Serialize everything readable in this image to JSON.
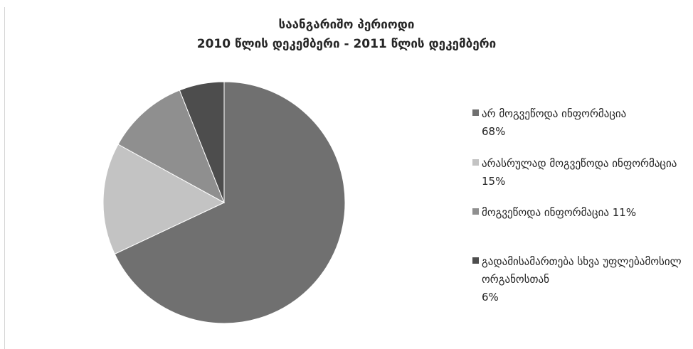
{
  "chart_data": {
    "type": "pie",
    "title": [
      "საანგარიშო პერიოდი",
      "2010 წლის დეკემბერი - 2011 წლის დეკემბერი"
    ],
    "legend_position": "right",
    "slices": [
      {
        "label": "არ მოგვეწოდა ინფორმაცია",
        "value": 68,
        "value_label": "68%",
        "color": "#707070"
      },
      {
        "label": "არასრულად მოგვეწოდა ინფორმაცია",
        "value": 15,
        "value_label": "15%",
        "color": "#c3c3c3"
      },
      {
        "label": "მოგვეწოდა ინფორმაცია",
        "value": 11,
        "value_label": "11%",
        "color": "#8f8f8f"
      },
      {
        "label": "გადამისამართება სხვა უფლებამოსილ ორგანოსთან",
        "value": 6,
        "value_label": "6%",
        "color": "#4d4d4d"
      }
    ]
  }
}
